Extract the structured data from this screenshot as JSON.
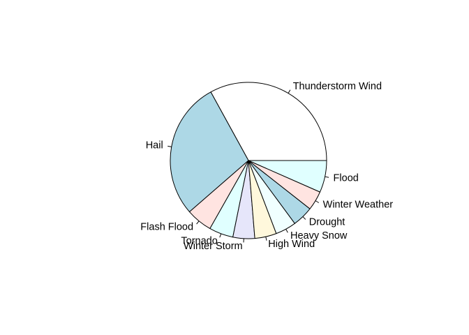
{
  "chart_data": {
    "type": "pie",
    "title": "",
    "start_angle_deg": 0,
    "direction": "counterclockwise",
    "border_color": "#000000",
    "background": "#ffffff",
    "slices": [
      {
        "label": "Thunderstorm Wind",
        "value": 33.0,
        "color": "#ffffff"
      },
      {
        "label": "Hail",
        "value": 28.4,
        "color": "#add8e6"
      },
      {
        "label": "Flash Flood",
        "value": 5.4,
        "color": "#ffe4e1"
      },
      {
        "label": "Tornado",
        "value": 5.0,
        "color": "#e0ffff"
      },
      {
        "label": "Winter Storm",
        "value": 4.5,
        "color": "#e6e6fa"
      },
      {
        "label": "High Wind",
        "value": 4.5,
        "color": "#fff8dc"
      },
      {
        "label": "Heavy Snow",
        "value": 4.3,
        "color": "#f0ffff"
      },
      {
        "label": "Drought",
        "value": 4.3,
        "color": "#add8e6"
      },
      {
        "label": "Winter Weather",
        "value": 4.0,
        "color": "#ffe4e1"
      },
      {
        "label": "Flood",
        "value": 6.6,
        "color": "#e0ffff"
      }
    ]
  }
}
